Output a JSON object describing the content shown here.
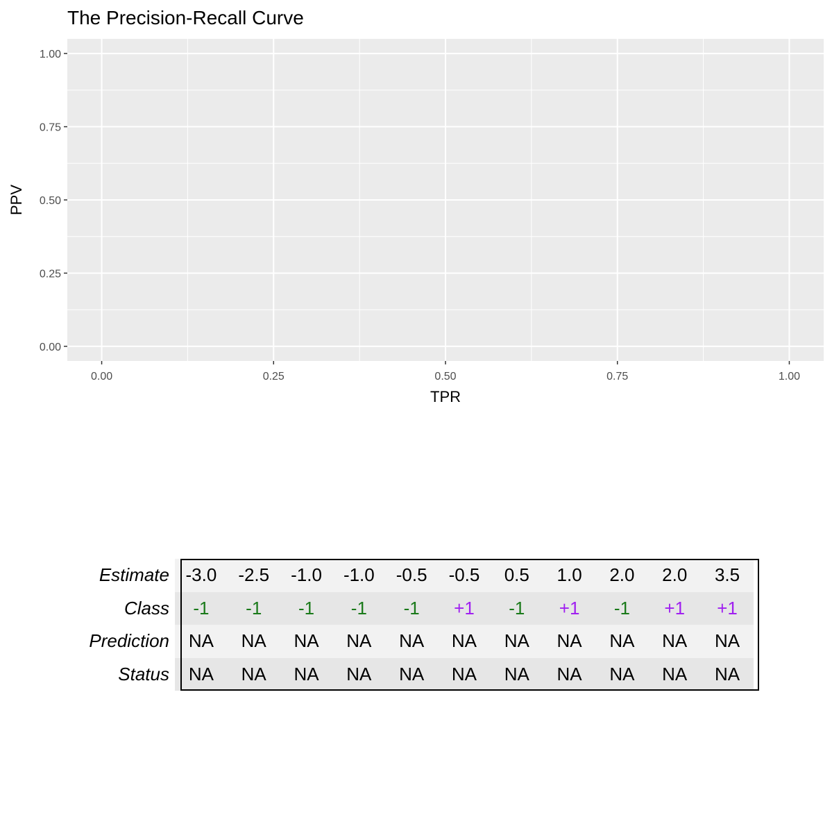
{
  "chart_data": {
    "type": "line",
    "title": "The Precision-Recall Curve",
    "xlabel": "TPR",
    "ylabel": "PPV",
    "xlim": [
      -0.05,
      1.05
    ],
    "ylim": [
      -0.05,
      1.05
    ],
    "x_ticks": [
      "0.00",
      "0.25",
      "0.50",
      "0.75",
      "1.00"
    ],
    "y_ticks": [
      "0.00",
      "0.25",
      "0.50",
      "0.75",
      "1.00"
    ],
    "grid": true,
    "series": []
  },
  "table": {
    "row_labels": [
      "Estimate",
      "Class",
      "Prediction",
      "Status"
    ],
    "estimate": [
      "-3.0",
      "-2.5",
      "-1.0",
      "-1.0",
      "-0.5",
      "-0.5",
      "0.5",
      "1.0",
      "2.0",
      "2.0",
      "3.5"
    ],
    "class": [
      "-1",
      "-1",
      "-1",
      "-1",
      "-1",
      "+1",
      "-1",
      "+1",
      "-1",
      "+1",
      "+1"
    ],
    "prediction": [
      "NA",
      "NA",
      "NA",
      "NA",
      "NA",
      "NA",
      "NA",
      "NA",
      "NA",
      "NA",
      "NA"
    ],
    "status": [
      "NA",
      "NA",
      "NA",
      "NA",
      "NA",
      "NA",
      "NA",
      "NA",
      "NA",
      "NA",
      "NA"
    ]
  },
  "colors": {
    "class_negative": "#1a7a1a",
    "class_positive": "#a020f0",
    "panel_bg": "#ebebeb",
    "grid": "#ffffff"
  }
}
